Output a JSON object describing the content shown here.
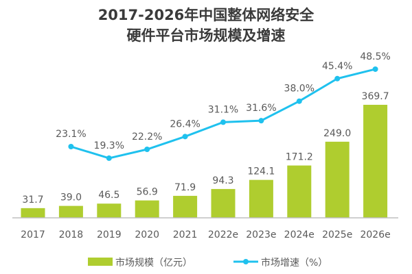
{
  "chart_data": {
    "type": "bar+line",
    "title_line1": "2017-2026年中国整体网络安全",
    "title_line2": "硬件平台市场规模及增速",
    "categories": [
      "2017",
      "2018",
      "2019",
      "2020",
      "2021",
      "2022e",
      "2023e",
      "2024e",
      "2025e",
      "2026e"
    ],
    "series": [
      {
        "name": "市场规模（亿元）",
        "type": "bar",
        "color": "#afcd2f",
        "values": [
          31.7,
          39.0,
          46.5,
          56.9,
          71.9,
          94.3,
          124.1,
          171.2,
          249.0,
          369.7
        ],
        "labels": [
          "31.7",
          "39.0",
          "46.5",
          "56.9",
          "71.9",
          "94.3",
          "124.1",
          "171.2",
          "249.0",
          "369.7"
        ]
      },
      {
        "name": "市场增速（%）",
        "type": "line",
        "color": "#1fc1ee",
        "values": [
          null,
          23.1,
          19.3,
          22.2,
          26.4,
          31.1,
          31.6,
          38.0,
          45.4,
          48.5
        ],
        "labels": [
          "",
          "23.1%",
          "19.3%",
          "22.2%",
          "26.4%",
          "31.1%",
          "31.6%",
          "38.0%",
          "45.4%",
          "48.5%"
        ]
      }
    ],
    "legend_position": "bottom",
    "grid": false
  }
}
